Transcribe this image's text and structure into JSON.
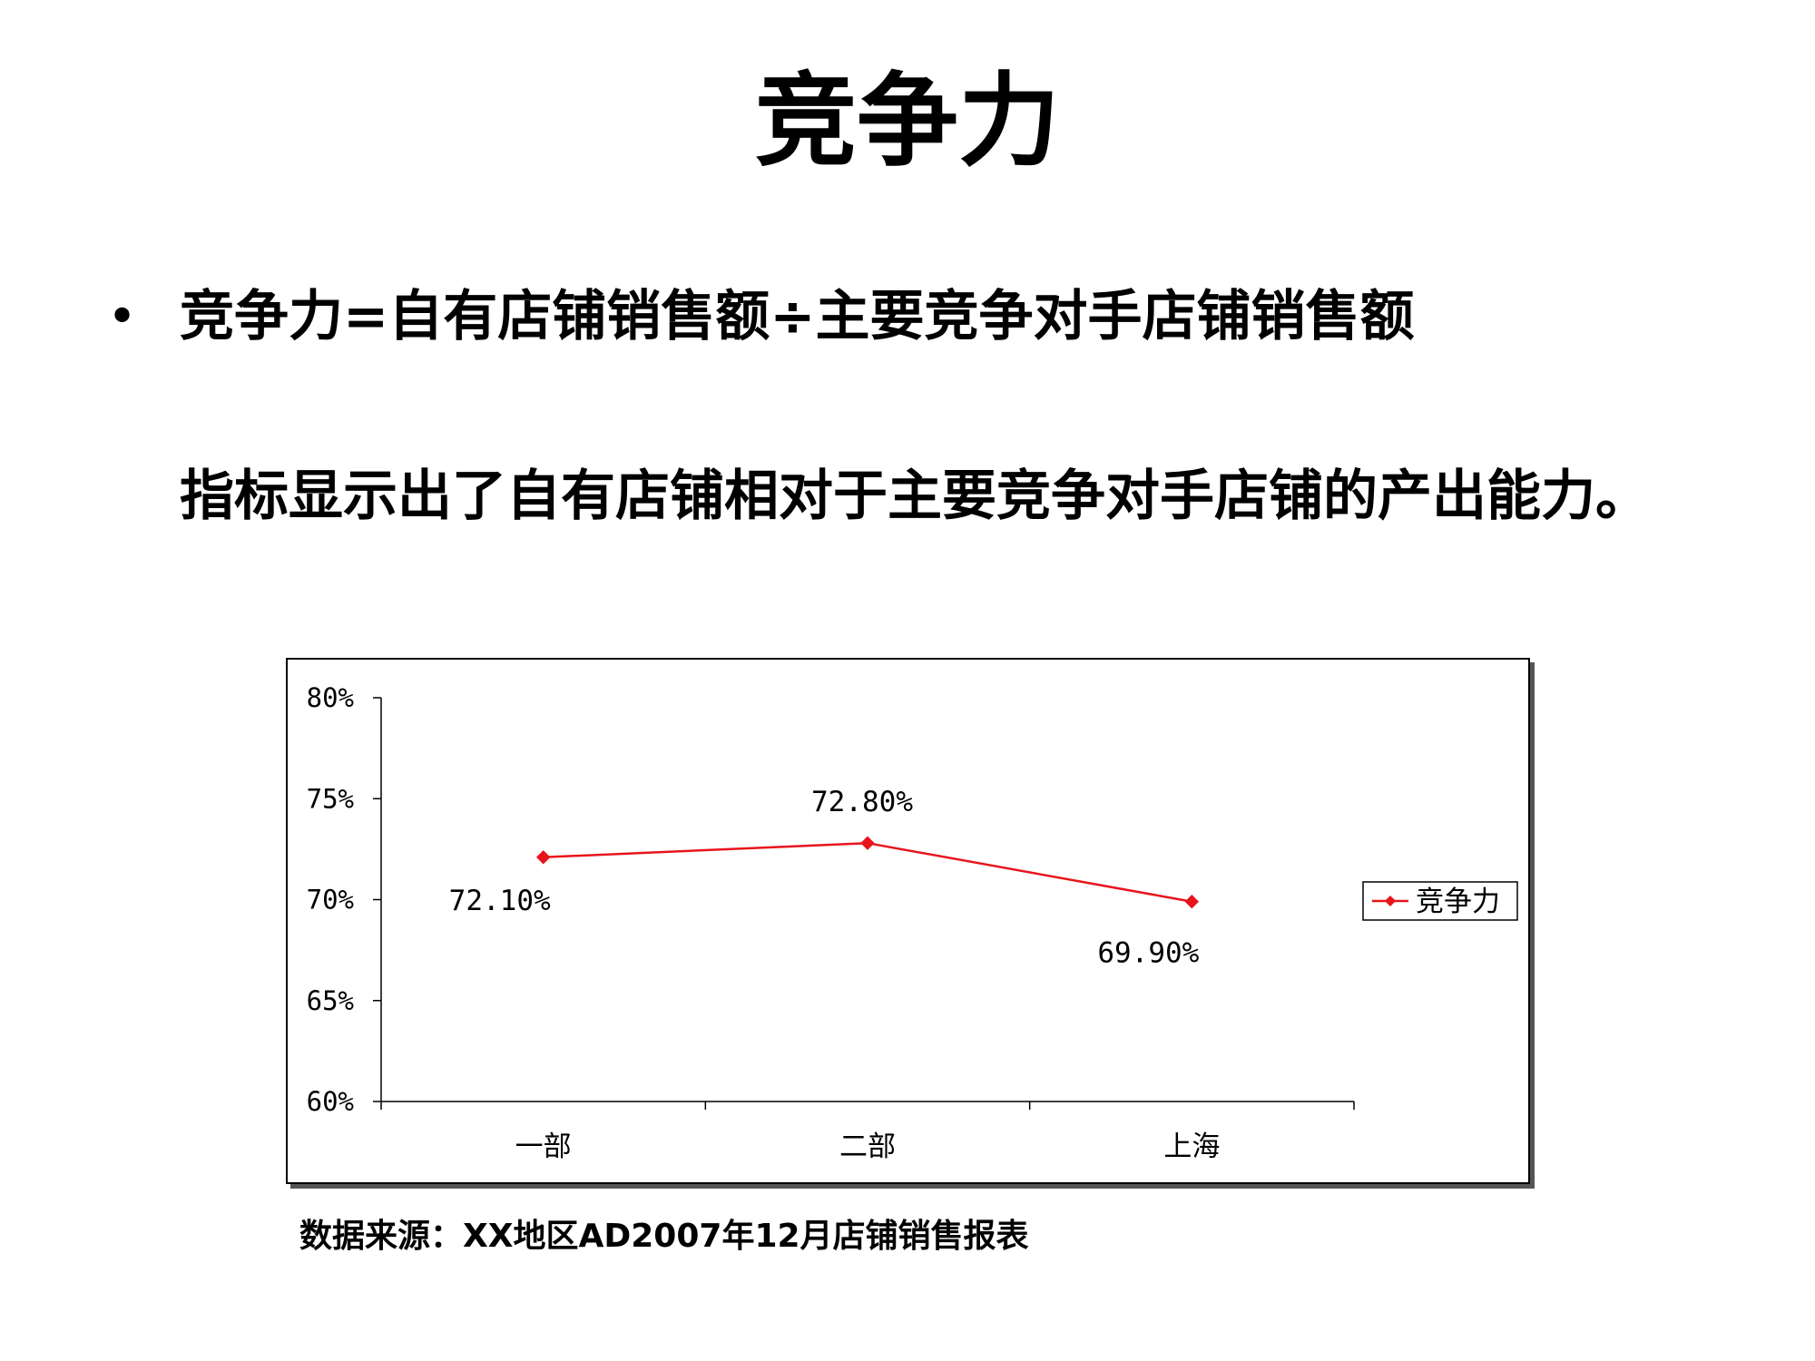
{
  "slide": {
    "title": "竞争力",
    "bullet_symbol": "•",
    "bullet_text": "竞争力=自有店铺销售额÷主要竞争对手店铺销售额",
    "paragraph": "指标显示出了自有店铺相对于主要竞争对手店铺的产出能力。",
    "source": "数据来源：XX地区AD2007年12月店铺销售报表"
  },
  "chart_data": {
    "type": "line",
    "title": "",
    "xlabel": "",
    "ylabel": "",
    "categories": [
      "一部",
      "二部",
      "上海"
    ],
    "series": [
      {
        "name": "竞争力",
        "values": [
          72.1,
          72.8,
          69.9
        ],
        "labels": [
          "72.10%",
          "72.80%",
          "69.90%"
        ],
        "color": "#e8141c",
        "marker": "diamond"
      }
    ],
    "ylim": [
      60,
      80
    ],
    "yticks": [
      60,
      65,
      70,
      75,
      80
    ],
    "ytick_labels": [
      "60%",
      "65%",
      "70%",
      "75%",
      "80%"
    ],
    "grid": false,
    "legend": "right"
  }
}
